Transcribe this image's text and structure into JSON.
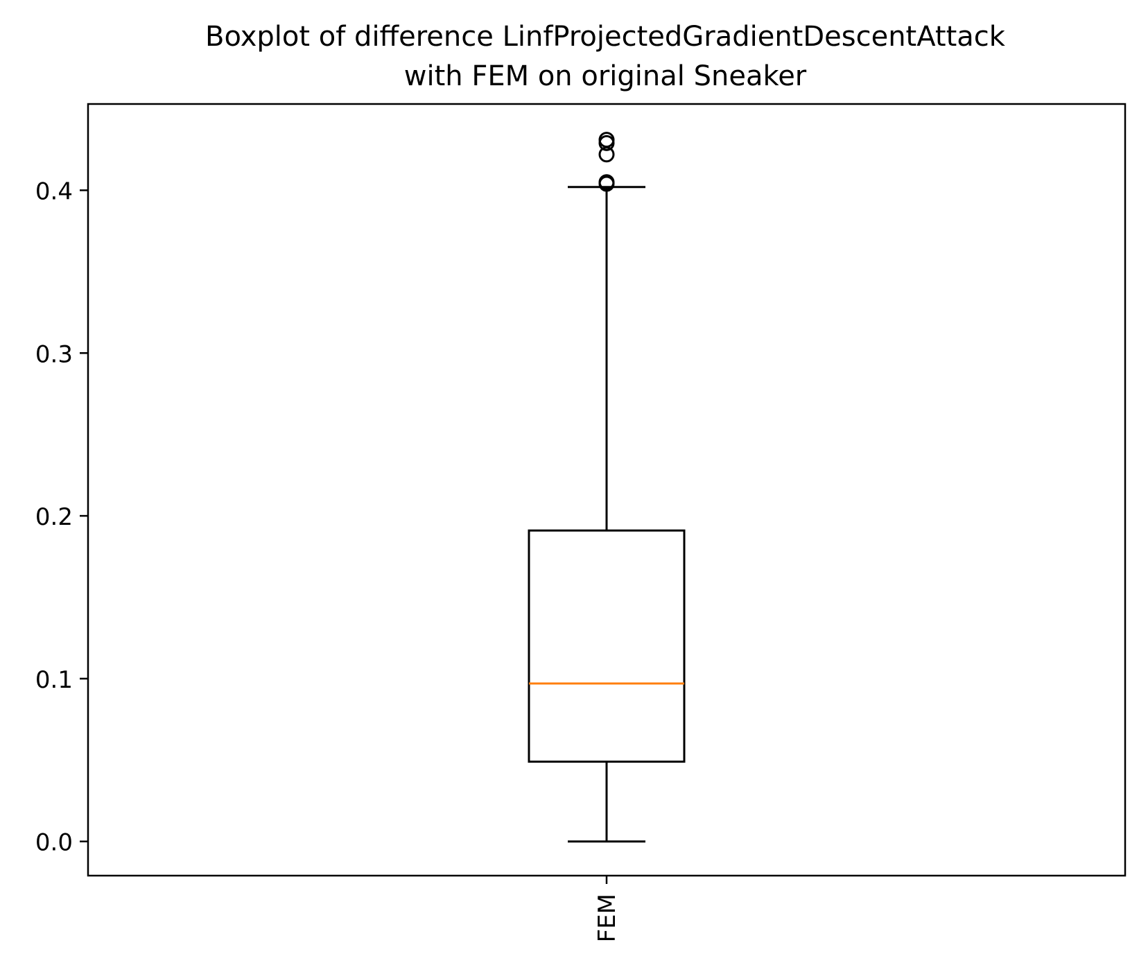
{
  "chart_data": {
    "type": "boxplot",
    "title_lines": [
      "Boxplot of difference LinfProjectedGradientDescentAttack",
      "with FEM on original Sneaker"
    ],
    "xlabel": "",
    "ylabel": "",
    "ylim": [
      -0.021,
      0.453
    ],
    "yticks": [
      0.0,
      0.1,
      0.2,
      0.3,
      0.4
    ],
    "ytick_labels": [
      "0.0",
      "0.1",
      "0.2",
      "0.3",
      "0.4"
    ],
    "categories": [
      "FEM"
    ],
    "boxes": [
      {
        "label": "FEM",
        "whisker_low": 0.0,
        "q1": 0.049,
        "median": 0.097,
        "q3": 0.191,
        "whisker_high": 0.402,
        "outliers": [
          0.404,
          0.405,
          0.422,
          0.429,
          0.431
        ]
      }
    ],
    "grid": false,
    "colors": {
      "box": "#000000",
      "median": "#ff7f0e",
      "frame": "#000000"
    }
  }
}
